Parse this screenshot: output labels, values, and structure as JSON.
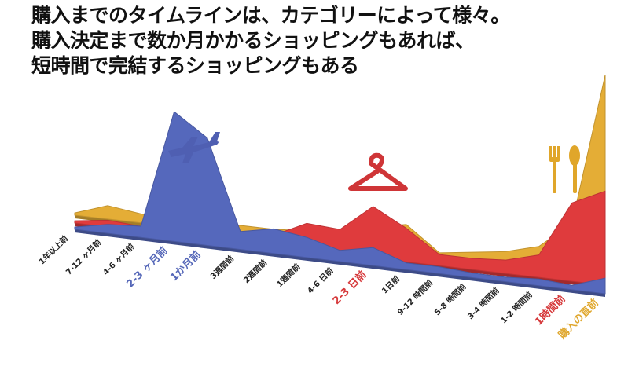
{
  "headline": {
    "line1": "購入までのタイムラインは、カテゴリーによって様々。",
    "line2": "購入決定まで数か月かかるショッピングもあれば、",
    "line3": "短時間で完結するショッピングもある"
  },
  "chart_data": {
    "type": "area",
    "title": "",
    "xlabel": "",
    "ylabel": "",
    "categories": [
      "1年以上前",
      "7-12 ヶ月前",
      "4-6 ヶ月前",
      "2-3 ヶ月前",
      "1か月前",
      "3週間前",
      "2週間前",
      "1週間前",
      "4-6 日前",
      "2-3 日前",
      "1日前",
      "9-12 時間前",
      "5-8 時間前",
      "3-4 時間前",
      "1-2 時間前",
      "1時間前",
      "購入の直前"
    ],
    "ylim": [
      0,
      100
    ],
    "grid": false,
    "legend": "none",
    "highlight_colors": {
      "2-3 ヶ月前": "#5567b8",
      "1か月前": "#5567b8",
      "2-3 日前": "#d63a3c",
      "1時間前": "#d63a3c",
      "購入の直前": "#e0a830"
    },
    "series": [
      {
        "color": "#e4ad36",
        "icon": "fork-spoon-icon",
        "values": [
          1,
          6,
          4,
          3,
          3,
          4,
          4,
          5,
          6,
          10,
          13,
          2,
          4,
          6,
          10,
          22,
          90
        ]
      },
      {
        "color": "#df3b3d",
        "icon": "clothes-hanger-icon",
        "values": [
          1,
          3,
          2,
          2,
          3,
          4,
          5,
          12,
          11,
          23,
          15,
          5,
          5,
          6,
          10,
          35,
          42
        ]
      },
      {
        "color": "#5568bc",
        "icon": "airplane-icon",
        "values": [
          1,
          4,
          5,
          58,
          48,
          8,
          11,
          9,
          5,
          8,
          3,
          3,
          2,
          2,
          3,
          2,
          7
        ]
      }
    ]
  }
}
